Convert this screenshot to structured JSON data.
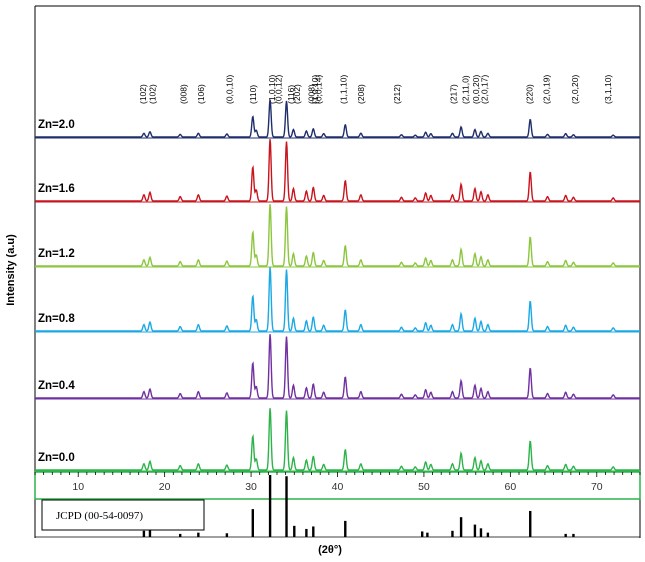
{
  "chart_data": {
    "type": "line",
    "xlabel": "(2θ°)",
    "ylabel": "Intensity (a.u)",
    "xlim": [
      5,
      75
    ],
    "x_ticks": [
      10,
      20,
      30,
      40,
      50,
      60,
      70
    ],
    "grid": false,
    "peak_labels": [
      {
        "text": "(102)",
        "x": 17.5
      },
      {
        "text": "(102)",
        "x": 18.6
      },
      {
        "text": "(008)",
        "x": 22.2
      },
      {
        "text": "(106)",
        "x": 24.2
      },
      {
        "text": "(0,0,10)",
        "x": 27.5
      },
      {
        "text": "(110)",
        "x": 30.2
      },
      {
        "text": "(1,0,10)",
        "x": 32.4
      },
      {
        "text": "(0,0,12)",
        "x": 33.2
      },
      {
        "text": "(116)",
        "x": 34.6
      },
      {
        "text": "(202)",
        "x": 35.3
      },
      {
        "text": "(008)",
        "x": 37.0
      },
      {
        "text": "(1,0,10)",
        "x": 37.4
      },
      {
        "text": "(0,0,14)",
        "x": 37.8
      },
      {
        "text": "(1,1,10)",
        "x": 40.7
      },
      {
        "text": "(208)",
        "x": 42.7
      },
      {
        "text": "(212)",
        "x": 46.9
      },
      {
        "text": "(217)",
        "x": 53.4
      },
      {
        "text": "(2,11,0)",
        "x": 54.8
      },
      {
        "text": "(0,0,20)",
        "x": 56.0
      },
      {
        "text": "(2,0,17)",
        "x": 57.0
      },
      {
        "text": "(220)",
        "x": 62.2
      },
      {
        "text": "(2,0,19)",
        "x": 64.2
      },
      {
        "text": "(2,0,20)",
        "x": 67.5
      },
      {
        "text": "(3,1,10)",
        "x": 71.3
      }
    ],
    "peaks": [
      {
        "x": 17.6,
        "h": 0.1
      },
      {
        "x": 18.3,
        "h": 0.14
      },
      {
        "x": 21.8,
        "h": 0.07
      },
      {
        "x": 23.9,
        "h": 0.1
      },
      {
        "x": 27.2,
        "h": 0.08
      },
      {
        "x": 30.2,
        "h": 0.55
      },
      {
        "x": 30.6,
        "h": 0.18
      },
      {
        "x": 32.2,
        "h": 1.0
      },
      {
        "x": 34.1,
        "h": 0.96
      },
      {
        "x": 34.9,
        "h": 0.2
      },
      {
        "x": 36.4,
        "h": 0.16
      },
      {
        "x": 37.2,
        "h": 0.22
      },
      {
        "x": 38.4,
        "h": 0.09
      },
      {
        "x": 40.9,
        "h": 0.33
      },
      {
        "x": 42.7,
        "h": 0.1
      },
      {
        "x": 47.4,
        "h": 0.06
      },
      {
        "x": 49.0,
        "h": 0.05
      },
      {
        "x": 50.2,
        "h": 0.13
      },
      {
        "x": 50.8,
        "h": 0.09
      },
      {
        "x": 53.3,
        "h": 0.1
      },
      {
        "x": 54.3,
        "h": 0.27
      },
      {
        "x": 55.9,
        "h": 0.2
      },
      {
        "x": 56.6,
        "h": 0.15
      },
      {
        "x": 57.4,
        "h": 0.1
      },
      {
        "x": 62.3,
        "h": 0.47
      },
      {
        "x": 64.3,
        "h": 0.07
      },
      {
        "x": 66.4,
        "h": 0.09
      },
      {
        "x": 67.3,
        "h": 0.06
      },
      {
        "x": 71.9,
        "h": 0.05
      }
    ],
    "series": [
      {
        "name": "Zn=2.0",
        "color": "#1f2e6b",
        "scale": 0.75
      },
      {
        "name": "Zn=1.6",
        "color": "#c8141d",
        "scale": 1.0
      },
      {
        "name": "Zn=1.2",
        "color": "#8cc63f",
        "scale": 1.0
      },
      {
        "name": "Zn=0.8",
        "color": "#1ba8e4",
        "scale": 1.0
      },
      {
        "name": "Zn=0.4",
        "color": "#7030a0",
        "scale": 1.0
      },
      {
        "name": "Zn=0.0",
        "color": "#2db34a",
        "scale": 1.0
      }
    ],
    "reference": {
      "name": "JCPD  (00-54-0097)",
      "color": "#000000",
      "sticks": [
        {
          "x": 17.6,
          "h": 0.1
        },
        {
          "x": 18.3,
          "h": 0.14
        },
        {
          "x": 21.8,
          "h": 0.05
        },
        {
          "x": 23.9,
          "h": 0.07
        },
        {
          "x": 27.2,
          "h": 0.06
        },
        {
          "x": 30.2,
          "h": 0.45
        },
        {
          "x": 32.2,
          "h": 1.0
        },
        {
          "x": 34.1,
          "h": 0.98
        },
        {
          "x": 35.0,
          "h": 0.18
        },
        {
          "x": 36.4,
          "h": 0.13
        },
        {
          "x": 37.2,
          "h": 0.17
        },
        {
          "x": 40.9,
          "h": 0.26
        },
        {
          "x": 49.8,
          "h": 0.09
        },
        {
          "x": 50.4,
          "h": 0.07
        },
        {
          "x": 53.3,
          "h": 0.1
        },
        {
          "x": 54.3,
          "h": 0.32
        },
        {
          "x": 55.9,
          "h": 0.2
        },
        {
          "x": 56.6,
          "h": 0.14
        },
        {
          "x": 57.4,
          "h": 0.07
        },
        {
          "x": 62.3,
          "h": 0.42
        },
        {
          "x": 66.4,
          "h": 0.05
        },
        {
          "x": 67.3,
          "h": 0.05
        }
      ]
    },
    "axis_frame_color": "#2db34a"
  }
}
